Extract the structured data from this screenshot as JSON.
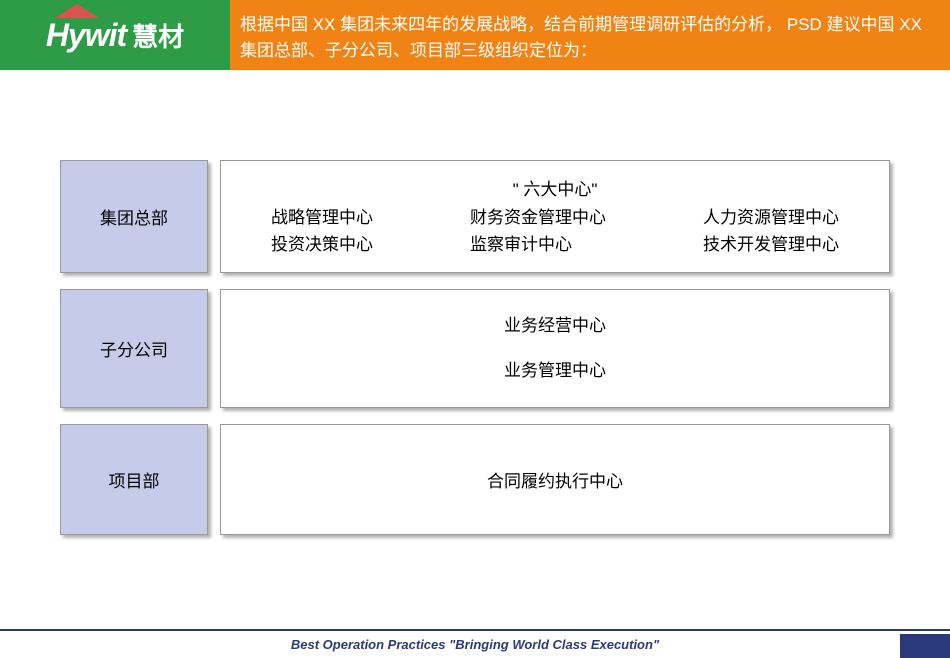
{
  "header": {
    "logo_en": "Hywit",
    "logo_cn": "慧材",
    "title": "根据中国 XX 集团未来四年的发展战略，结合前期管理调研评估的分析， PSD 建议中国 XX 集团总部、子分公司、项目部三级组织定位为：",
    "logo_bg": "#2e9b47",
    "title_bg": "#f08314"
  },
  "rows": [
    {
      "label": "集团总部",
      "six_title": "\" 六大中心\"",
      "col1_item1": "战略管理中心",
      "col1_item2": "投资决策中心",
      "col2_item1": "财务资金管理中心",
      "col2_item2": "监察审计中心",
      "col3_item1": "人力资源管理中心",
      "col3_item2": "技术开发管理中心"
    },
    {
      "label": "子分公司",
      "line1": "业务经营中心",
      "line2": "业务管理中心"
    },
    {
      "label": "项目部",
      "single": "合同履约执行中心"
    }
  ],
  "footer": {
    "text": "Best Operation Practices \"Bringing World Class Execution\"",
    "border_color": "#2a3a7a"
  },
  "styles": {
    "label_bg": "#c5cbe8",
    "box_border": "#999999",
    "font_size_body": 17
  }
}
